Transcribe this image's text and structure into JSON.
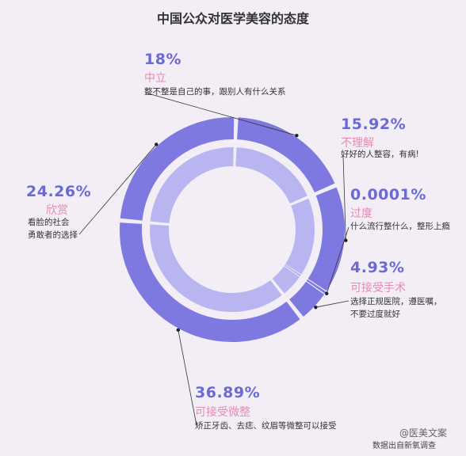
{
  "chart_data": {
    "type": "pie",
    "title": "中国公众对医学美容的态度",
    "slices": [
      {
        "label": "中立",
        "percent_label": "18%",
        "value": 18,
        "note": "整不整是自己的事，跟别人有什么关系"
      },
      {
        "label": "不理解",
        "percent_label": "15.92%",
        "value": 15.92,
        "note": "好好的人整容，有病!"
      },
      {
        "label": "过度",
        "percent_label": "0.0001%",
        "value": 0.0001,
        "note": "什么流行整什么，整形上瘾"
      },
      {
        "label": "可接受手术",
        "percent_label": "4.93%",
        "value": 4.93,
        "note": "选择正规医院，遵医嘱，不要过度就好"
      },
      {
        "label": "可接受微整",
        "percent_label": "36.89%",
        "value": 36.89,
        "note": "矫正牙齿、去痣、纹眉等微整可以接受"
      },
      {
        "label": "欣赏",
        "percent_label": "24.26%",
        "value": 24.26,
        "note": "看脸的社会勇敢者的选择"
      }
    ]
  },
  "labels": {
    "neutral": {
      "pct": "18%",
      "cat": "中立",
      "desc": "整不整是自己的事，跟别人有什么关系"
    },
    "not_understand": {
      "pct": "15.92%",
      "cat": "不理解",
      "desc": "好好的人整容，有病!"
    },
    "excessive": {
      "pct": "0.0001%",
      "cat": "过度",
      "desc": "什么流行整什么，整形上瘾"
    },
    "surgery": {
      "pct": "4.93%",
      "cat": "可接受手术",
      "desc1": "选择正规医院，遵医嘱，",
      "desc2": "不要过度就好"
    },
    "micro": {
      "pct": "36.89%",
      "cat": "可接受微整",
      "desc": "矫正牙齿、去痣、纹眉等微整可以接受"
    },
    "admire": {
      "pct": "24.26%",
      "cat": "欣赏",
      "desc1": "看脸的社会",
      "desc2": "勇敢者的选择"
    }
  },
  "footer": {
    "source": "数据出自新氧调查",
    "watermark": "@医美文案"
  },
  "colors": {
    "outer_ring": "#7d79e0",
    "inner_ring": "#b9b5f1",
    "background": "#f3eef5",
    "pct_text": "#6a6ad6",
    "category_text": "#e58bb3"
  }
}
